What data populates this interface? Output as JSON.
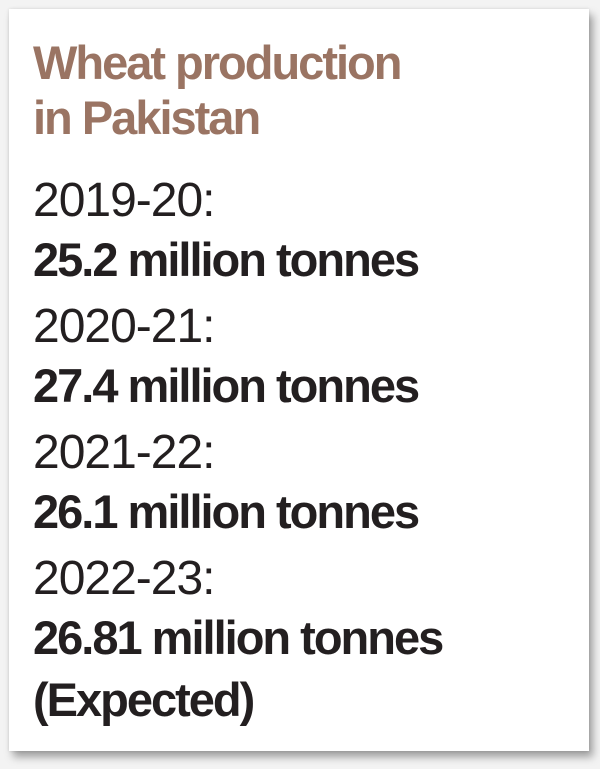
{
  "title": {
    "line1": "Wheat production",
    "line2": "in Pakistan",
    "color": "#9a7463"
  },
  "entries": [
    {
      "period": "2019-20:",
      "value": "25.2 million tonnes",
      "note": ""
    },
    {
      "period": "2020-21:",
      "value": "27.4 million tonnes",
      "note": ""
    },
    {
      "period": "2021-22:",
      "value": "26.1 million tonnes",
      "note": ""
    },
    {
      "period": "2022-23:",
      "value": "26.81 million tonnes",
      "note": "(Expected)"
    }
  ],
  "text_color": "#231f20",
  "chart_data": {
    "type": "table",
    "title": "Wheat production in Pakistan",
    "categories": [
      "2019-20",
      "2020-21",
      "2021-22",
      "2022-23"
    ],
    "values": [
      25.2,
      27.4,
      26.1,
      26.81
    ],
    "unit": "million tonnes",
    "annotations": {
      "2022-23": "Expected"
    }
  }
}
